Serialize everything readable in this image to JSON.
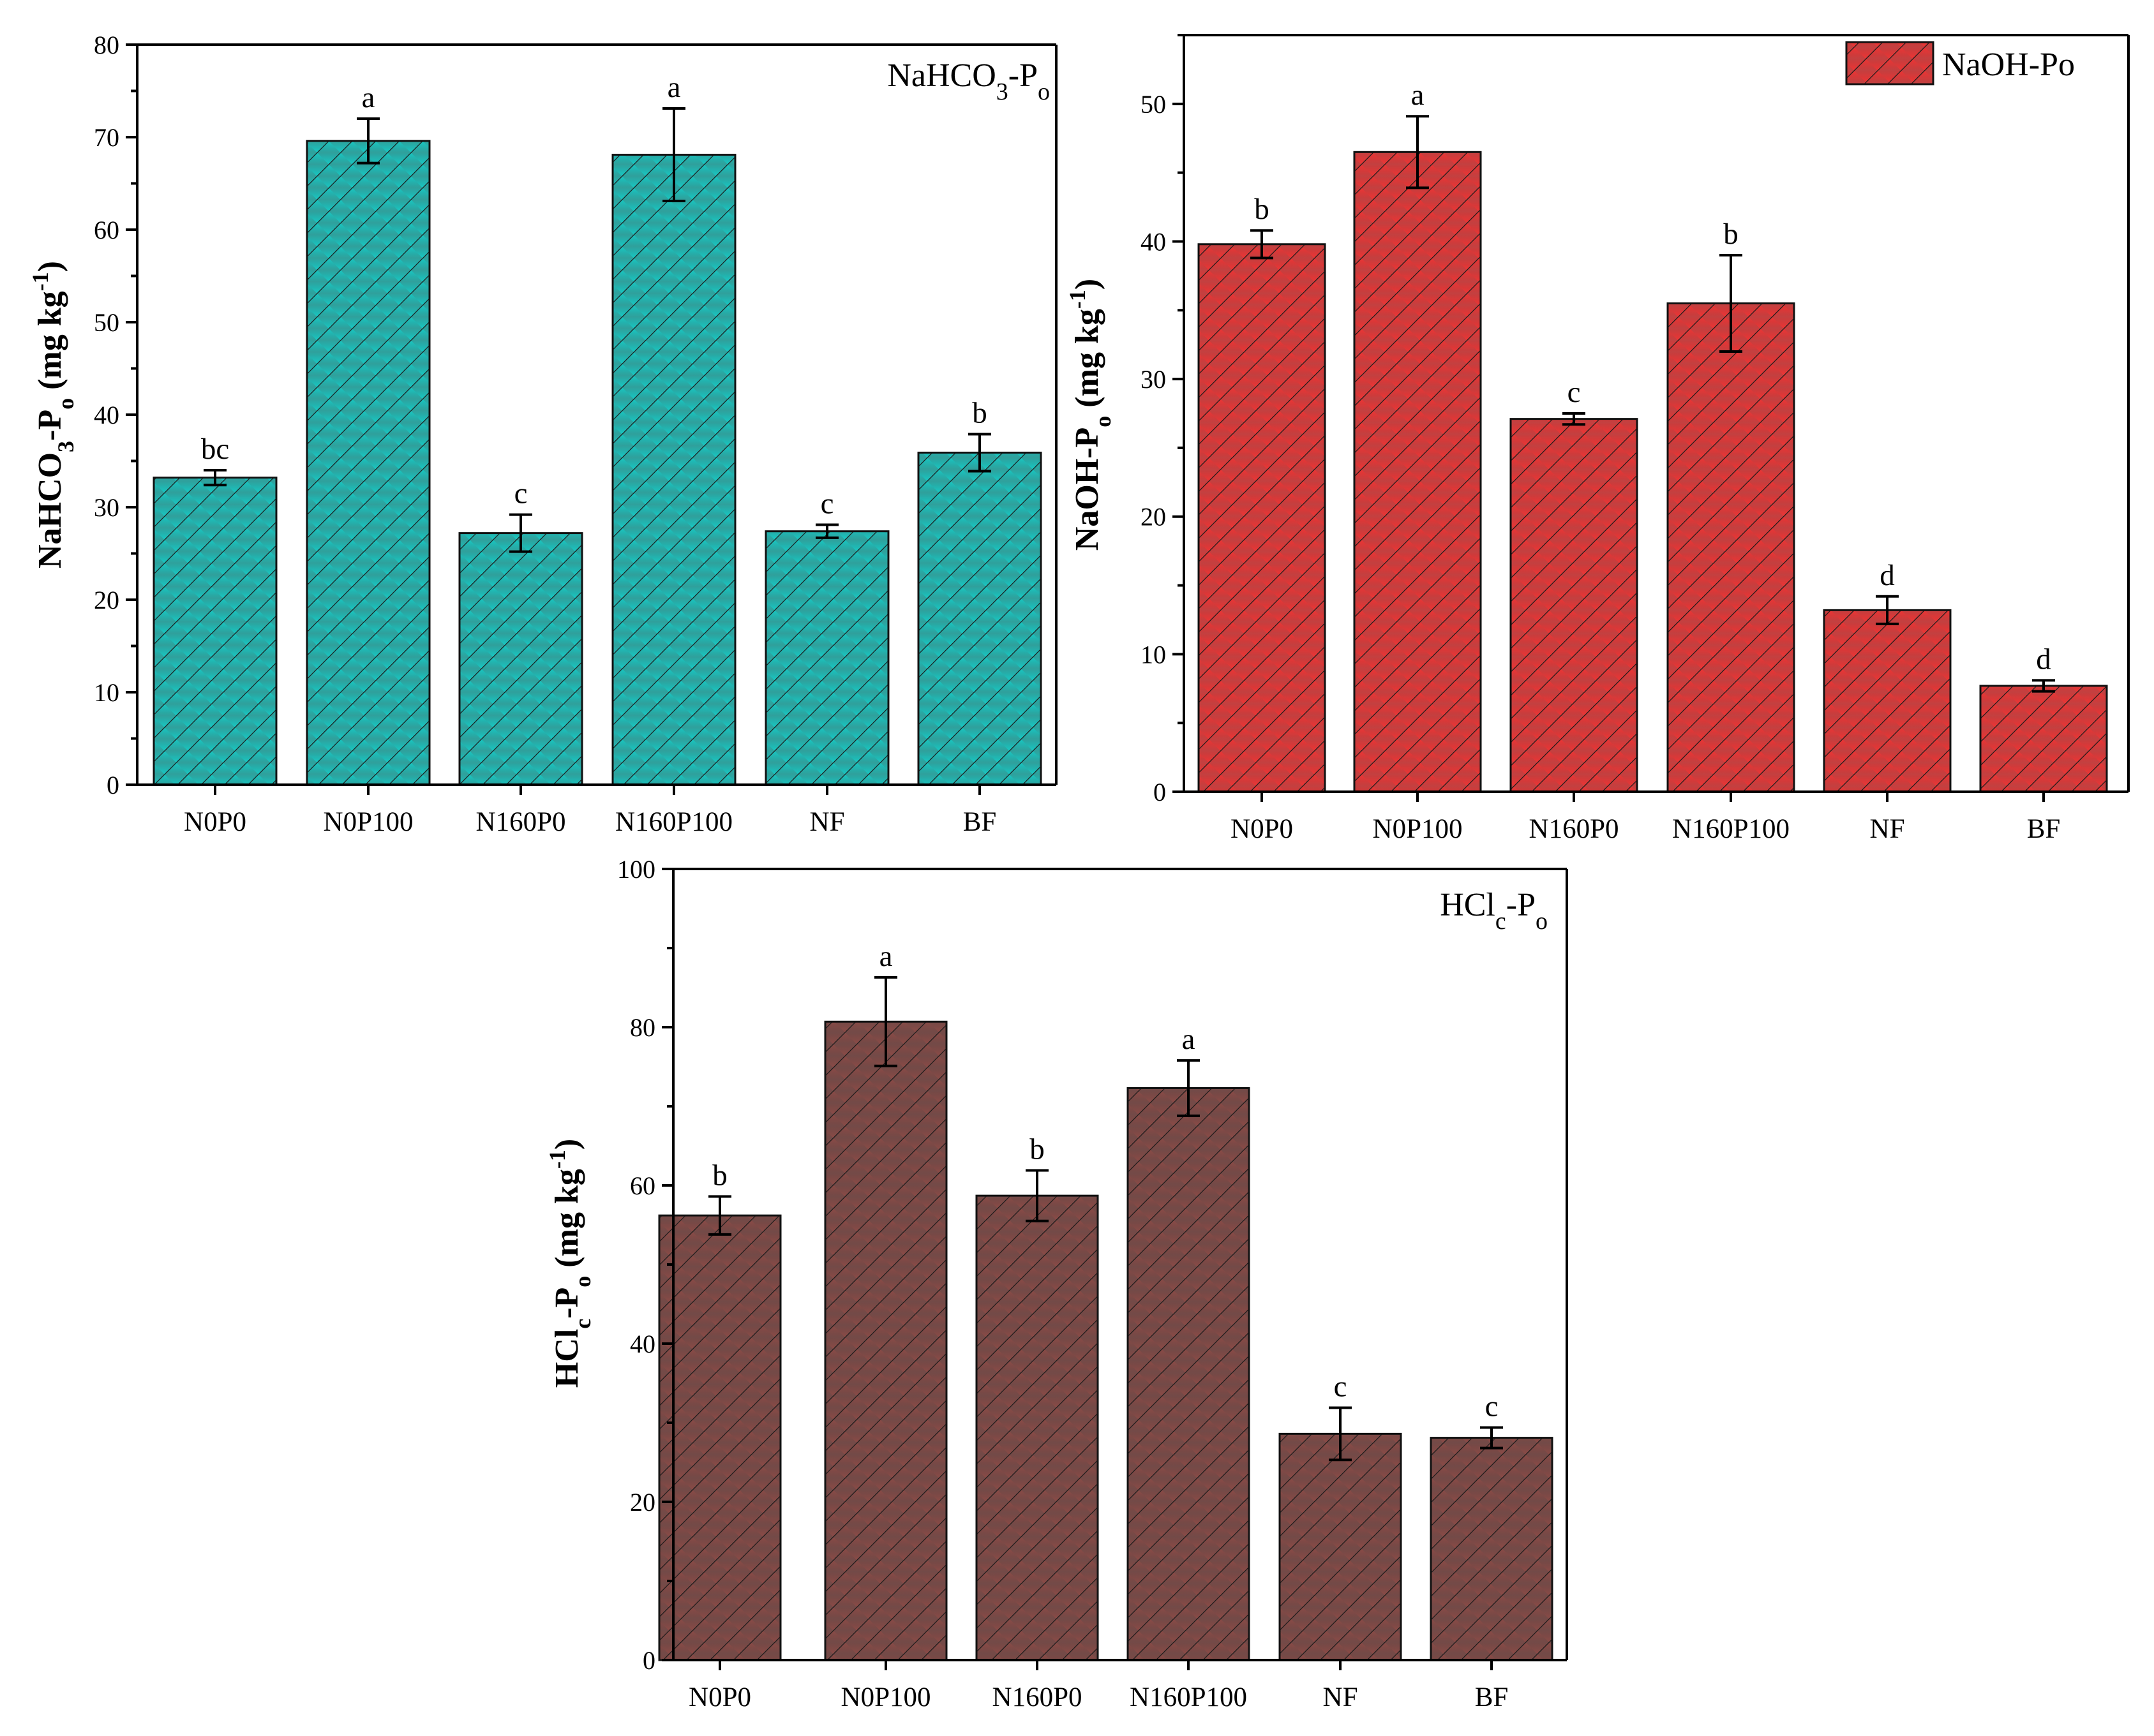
{
  "chart_data": [
    {
      "type": "bar",
      "title": "NaHCO3-Po",
      "panel_label": "NaHCO",
      "panel_label_sub1": "3",
      "panel_label_mid": "-P",
      "panel_label_sub2": "o",
      "ylabel": "NaHCO3-Po (mg kg-1)",
      "ylabel_parts": [
        "NaHCO",
        "3",
        "-P",
        "o",
        " (mg kg",
        "-1",
        ")"
      ],
      "xlabel": "",
      "ylim": [
        0,
        80
      ],
      "yticks": [
        0,
        10,
        20,
        30,
        40,
        50,
        60,
        70,
        80
      ],
      "categories": [
        "N0P0",
        "N0P100",
        "N160P0",
        "N160P100",
        "NF",
        "BF"
      ],
      "values": [
        33.2,
        69.6,
        27.2,
        68.1,
        27.4,
        35.9
      ],
      "errors": [
        0.8,
        2.4,
        2.0,
        5.0,
        0.7,
        2.0
      ],
      "significance": [
        "bc",
        "a",
        "c",
        "a",
        "c",
        "b"
      ],
      "bar_color": "#17c9c4",
      "bar_color_dark": "#0b8f8a",
      "legend_position": "top-right"
    },
    {
      "type": "bar",
      "title": "NaOH-Po",
      "legend_label": "NaOH-Po",
      "ylabel": "NaOH-Po (mg kg-1)",
      "ylabel_parts": [
        "NaOH-P",
        "o",
        " (mg kg",
        "-1",
        ")"
      ],
      "xlabel": "",
      "ylim": [
        0,
        55
      ],
      "yticks": [
        0,
        10,
        20,
        30,
        40,
        50
      ],
      "categories": [
        "N0P0",
        "N0P100",
        "N160P0",
        "N160P100",
        "NF",
        "BF"
      ],
      "values": [
        39.8,
        46.5,
        27.1,
        35.5,
        13.2,
        7.7
      ],
      "errors": [
        1.0,
        2.6,
        0.4,
        3.5,
        1.0,
        0.4
      ],
      "significance": [
        "b",
        "a",
        "c",
        "b",
        "d",
        "d"
      ],
      "bar_color": "#ef3434",
      "bar_color_dark": "#b81e1e",
      "legend_position": "top-right"
    },
    {
      "type": "bar",
      "title": "HClc-Po",
      "panel_label": "HCl",
      "panel_label_sub1": "c",
      "panel_label_mid": "-P",
      "panel_label_sub2": "o",
      "ylabel": "HClc-Po (mg kg-1)",
      "ylabel_parts": [
        "HCl",
        "c",
        "-P",
        "o",
        " (mg kg",
        "-1",
        ")"
      ],
      "xlabel": "",
      "ylim": [
        0,
        100
      ],
      "yticks": [
        0,
        20,
        40,
        60,
        80,
        100
      ],
      "categories": [
        "N0P0",
        "N0P100",
        "N160P0",
        "N160P100",
        "NF",
        "BF"
      ],
      "values": [
        56.2,
        80.7,
        58.7,
        72.3,
        28.6,
        28.1
      ],
      "errors": [
        2.4,
        5.6,
        3.2,
        3.5,
        3.3,
        1.3
      ],
      "significance": [
        "b",
        "a",
        "b",
        "a",
        "c",
        "c"
      ],
      "bar_color": "#8c4b47",
      "bar_color_dark": "#5a2a27",
      "legend_position": "top-right"
    }
  ]
}
